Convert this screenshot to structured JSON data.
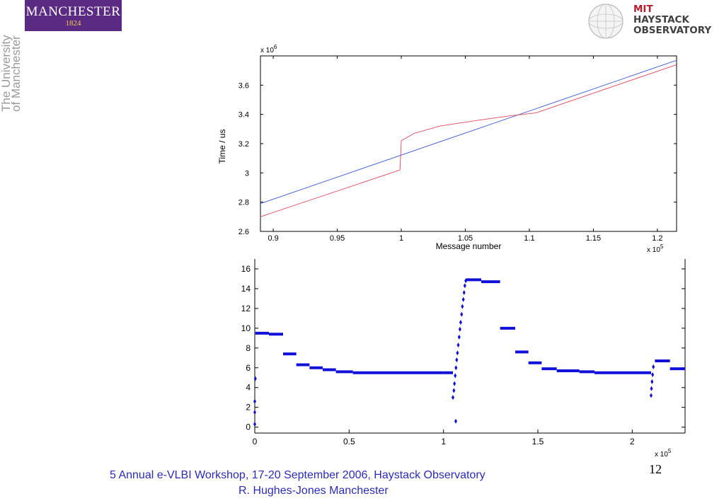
{
  "header": {
    "manchester_logo_name": "MANCHESTER",
    "manchester_logo_year": "1824",
    "university_text_line1": "The University",
    "university_text_line2": "of Manchester",
    "mit_line1": "MIT",
    "mit_line2": "HAYSTACK",
    "mit_line3": "OBSERVATORY",
    "colors": {
      "manchester_purple": "#5b2a83",
      "manchester_gold": "#f2c94c",
      "mit_red": "#b21e2e"
    }
  },
  "chart_data": [
    {
      "type": "line",
      "xlabel": "Message number",
      "ylabel": "Time / us",
      "x_multiplier": "x 10",
      "x_multiplier_exp": "5",
      "y_multiplier": "x 10",
      "y_multiplier_exp": "6",
      "xlim": [
        0.89,
        1.215
      ],
      "ylim": [
        2.6,
        3.8
      ],
      "x_ticks": [
        0.9,
        0.95,
        1,
        1.05,
        1.1,
        1.15,
        1.2
      ],
      "x_tick_labels": [
        "0.9",
        "0.95",
        "1",
        "1.05",
        "1.1",
        "1.15",
        "1.2"
      ],
      "y_ticks": [
        2.6,
        2.8,
        3,
        3.2,
        3.4,
        3.6
      ],
      "y_tick_labels": [
        "2.6",
        "2.8",
        "3",
        "3.2",
        "3.4",
        "3.6"
      ],
      "grid": false,
      "series": [
        {
          "color": "#3b5bd6",
          "x": [
            0.89,
            1.215
          ],
          "y": [
            2.79,
            3.77
          ]
        },
        {
          "color": "#e0465a",
          "x": [
            0.89,
            0.999,
            0.9995,
            1.0,
            1.01,
            1.03,
            1.06,
            1.085,
            1.105,
            1.215
          ],
          "y": [
            2.7,
            3.02,
            3.12,
            3.22,
            3.27,
            3.32,
            3.36,
            3.39,
            3.41,
            3.74
          ]
        }
      ]
    },
    {
      "type": "scatter",
      "xlabel": "",
      "ylabel": "",
      "x_multiplier": "x 10",
      "x_multiplier_exp": "5",
      "xlim": [
        0,
        2.28
      ],
      "ylim": [
        -0.6,
        17
      ],
      "x_ticks": [
        0,
        0.5,
        1,
        1.5,
        2
      ],
      "x_tick_labels": [
        "0",
        "0.5",
        "1",
        "1.5",
        "2"
      ],
      "y_ticks": [
        0,
        2,
        4,
        6,
        8,
        10,
        12,
        14,
        16
      ],
      "y_tick_labels": [
        "0",
        "2",
        "4",
        "6",
        "8",
        "10",
        "12",
        "14",
        "16"
      ],
      "grid": false,
      "marker_color": "#1010d8",
      "segments": [
        [
          0.003,
          0.075,
          9.5
        ],
        [
          0.075,
          0.15,
          9.4
        ],
        [
          0.15,
          0.22,
          7.4
        ],
        [
          0.22,
          0.29,
          6.3
        ],
        [
          0.29,
          0.36,
          6.0
        ],
        [
          0.36,
          0.43,
          5.8
        ],
        [
          0.43,
          0.52,
          5.6
        ],
        [
          0.52,
          1.0,
          5.5
        ],
        [
          1.0,
          1.05,
          5.5
        ],
        [
          1.12,
          1.2,
          14.9
        ],
        [
          1.2,
          1.3,
          14.7
        ],
        [
          1.3,
          1.38,
          10.0
        ],
        [
          1.38,
          1.45,
          7.6
        ],
        [
          1.45,
          1.52,
          6.5
        ],
        [
          1.52,
          1.6,
          5.9
        ],
        [
          1.6,
          1.72,
          5.7
        ],
        [
          1.72,
          1.8,
          5.6
        ],
        [
          1.8,
          2.1,
          5.5
        ],
        [
          2.12,
          2.2,
          6.7
        ],
        [
          2.2,
          2.28,
          5.9
        ]
      ],
      "points": [
        [
          0.0,
          0.3
        ],
        [
          0.0,
          1.5
        ],
        [
          0.0,
          2.6
        ],
        [
          0.003,
          4.9
        ],
        [
          1.05,
          3.0
        ],
        [
          1.055,
          3.7
        ],
        [
          1.058,
          4.4
        ],
        [
          1.062,
          5.2
        ],
        [
          1.066,
          6.0
        ],
        [
          1.07,
          6.8
        ],
        [
          1.074,
          7.5
        ],
        [
          1.078,
          8.3
        ],
        [
          1.083,
          9.1
        ],
        [
          1.087,
          9.9
        ],
        [
          1.091,
          10.6
        ],
        [
          1.096,
          11.4
        ],
        [
          1.1,
          12.2
        ],
        [
          1.105,
          12.9
        ],
        [
          1.109,
          13.6
        ],
        [
          1.113,
          14.3
        ],
        [
          1.118,
          14.8
        ],
        [
          1.065,
          0.6
        ],
        [
          2.1,
          3.2
        ],
        [
          2.102,
          3.9
        ],
        [
          2.105,
          4.6
        ],
        [
          2.108,
          5.3
        ],
        [
          2.112,
          6.1
        ]
      ]
    }
  ],
  "footer": {
    "line1": "5 Annual e-VLBI Workshop, 17-20 September 2006, Haystack Observatory",
    "line2": "R. Hughes-Jones  Manchester",
    "page_number": "12",
    "color": "#2b2bb5"
  }
}
